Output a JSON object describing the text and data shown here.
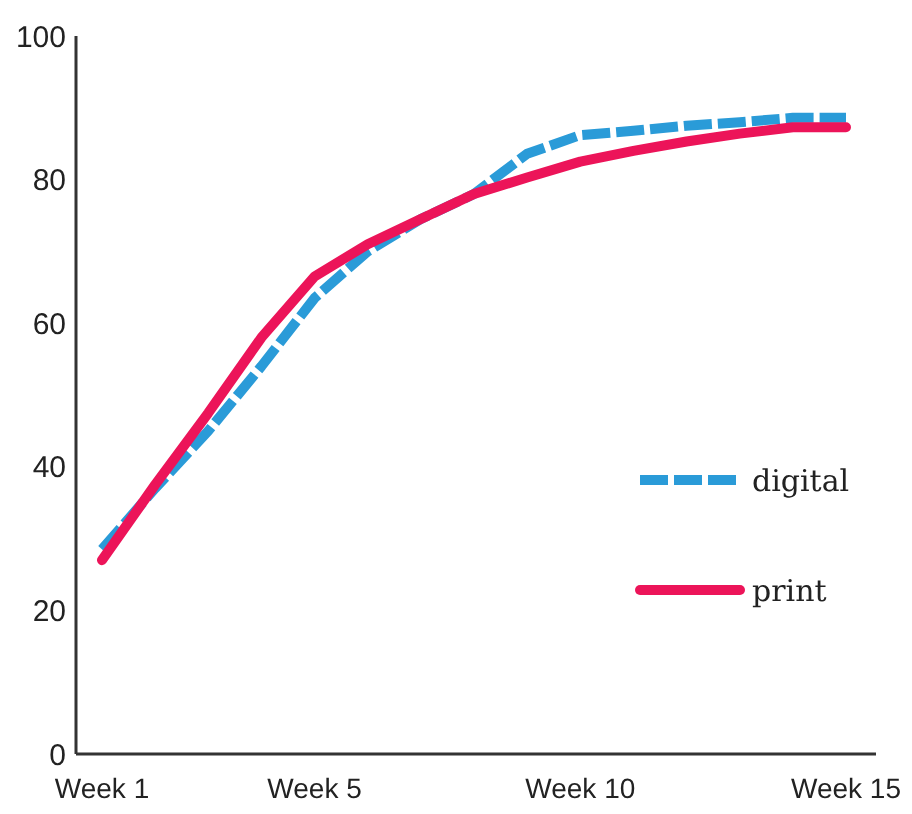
{
  "chart_data": {
    "type": "line",
    "categories": [
      "Week 1",
      null,
      null,
      null,
      "Week 5",
      null,
      null,
      null,
      null,
      "Week 10",
      null,
      null,
      null,
      null,
      "Week 15"
    ],
    "series": [
      {
        "name": "digital",
        "color": "#2a9bd8",
        "line_style": "dashed",
        "values": [
          28.5,
          37,
          45,
          54,
          63.5,
          70,
          74.5,
          78,
          83.6,
          86.2,
          86.8,
          87.5,
          88,
          88.6,
          88.6
        ]
      },
      {
        "name": "print",
        "color": "#ec1459",
        "line_style": "solid",
        "values": [
          27,
          37.5,
          47.5,
          58,
          66.5,
          71,
          74.5,
          78,
          80.3,
          82.5,
          84,
          85.3,
          86.4,
          87.3,
          87.3
        ]
      }
    ],
    "ylim": [
      0,
      100
    ],
    "yticks": [
      0,
      20,
      40,
      60,
      80,
      100
    ],
    "grid": false,
    "legend": "right"
  }
}
